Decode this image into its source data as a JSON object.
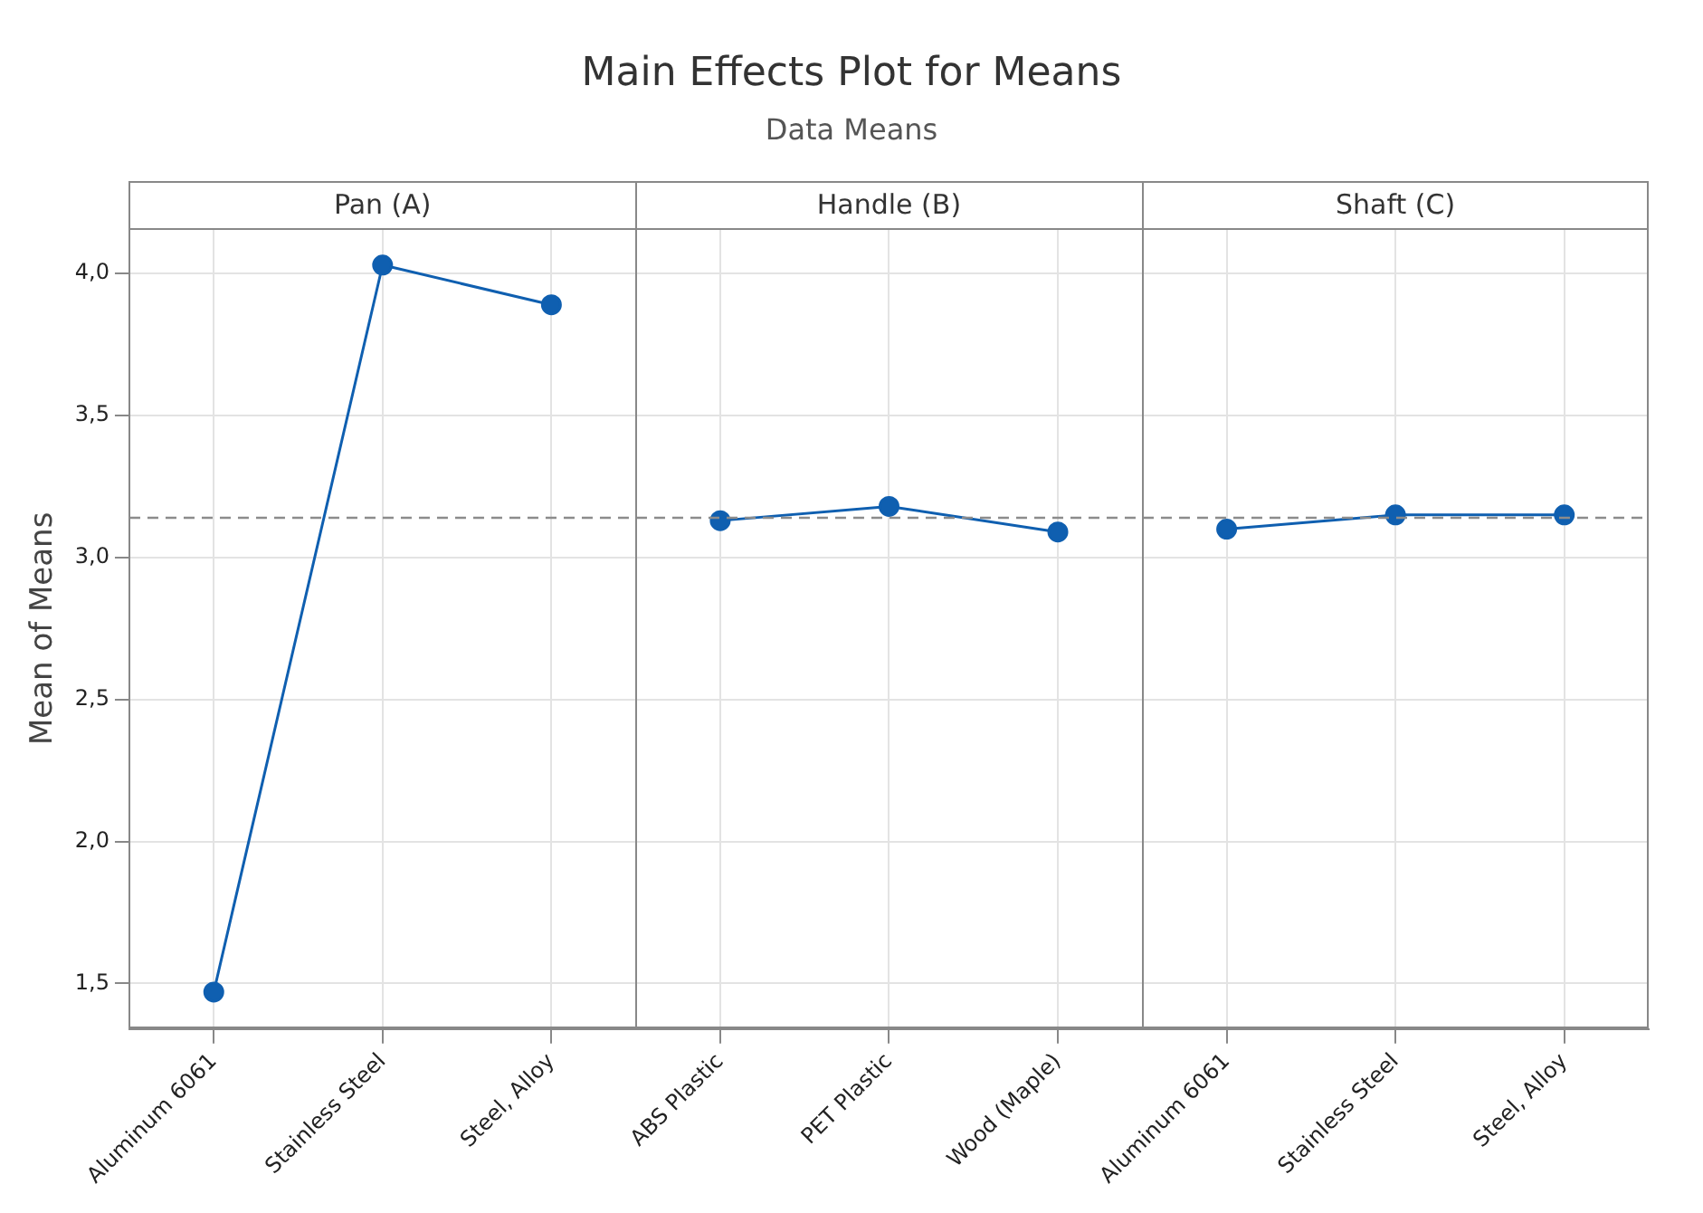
{
  "chart_data": {
    "type": "line",
    "title": "Main Effects Plot for Means",
    "subtitle": "Data Means",
    "ylabel": "Mean of Means",
    "categories": [
      "Aluminum 6061",
      "Stainless Steel",
      "Steel, Alloy",
      "ABS Plastic",
      "PET Plastic",
      "Wood (Maple)",
      "Aluminum 6061",
      "Stainless Steel",
      "Steel, Alloy"
    ],
    "series": [
      {
        "color": "#0f5fb0",
        "values": [
          1.47,
          4.03,
          3.89,
          null,
          null,
          null,
          null,
          null,
          null
        ]
      },
      {
        "color": "#0f5fb0",
        "values": [
          null,
          null,
          null,
          3.13,
          3.18,
          3.09,
          null,
          null,
          null
        ]
      },
      {
        "color": "#0f5fb0",
        "values": [
          null,
          null,
          null,
          null,
          null,
          null,
          3.1,
          3.15,
          3.15
        ]
      }
    ],
    "annotations": [
      "Pan (A)",
      "Handle (B)",
      "Shaft (C)"
    ],
    "ylim": [
      1.34,
      4.16
    ],
    "yticks": [
      {
        "value": 1.5,
        "label": "1,5"
      },
      {
        "value": 2,
        "label": "2,0"
      },
      {
        "value": 2.5,
        "label": "2,5"
      },
      {
        "value": 3,
        "label": "3,0"
      },
      {
        "value": 3.5,
        "label": "3,5"
      },
      {
        "value": 4,
        "label": "4,0"
      }
    ],
    "ref_lines": [
      {
        "axis": "y",
        "value": 3.14,
        "color": "#8c8c8c",
        "line_style": "dashed"
      }
    ],
    "grid": true,
    "legend": false,
    "marker": "circle",
    "line_style": "solid"
  }
}
